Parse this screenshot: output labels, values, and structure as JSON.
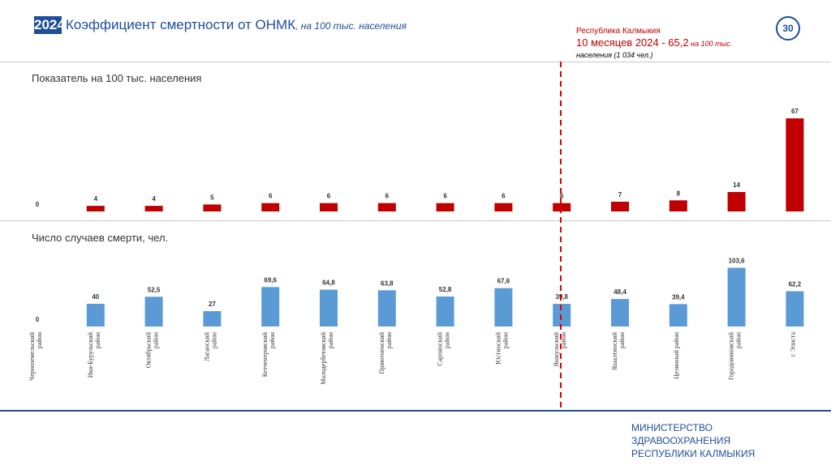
{
  "header": {
    "year": "2024",
    "title": "Коэффициент смертности от ОНМК",
    "subtitle": ", на 100 тыс. населения",
    "page_number": "30"
  },
  "region_info": {
    "region": "Республика Калмыкия",
    "period_value": "10 месяцев 2024 - 65,2",
    "per_unit": " на 100 тыс.",
    "population_note": "населения (1 034 чел.)"
  },
  "chart_data": [
    {
      "type": "bar",
      "title": "Показатель на 100 тыс. населения",
      "color": "#c00000",
      "categories": [
        "Черноземельский район",
        "Ики-Бурульский район",
        "Октябрьский район",
        "Лаганский район",
        "Кетченеровский район",
        "Малодербетовский район",
        "Приютненский район",
        "Сарпинский район",
        "Юстинский район",
        "Яшкульский район",
        "Яшалтинский район",
        "Целинный район",
        "Городовиковский район",
        "г. Элиста"
      ],
      "values": [
        0,
        4,
        4,
        5,
        6,
        6,
        6,
        6,
        6,
        6,
        7,
        8,
        14,
        67
      ],
      "value_labels": [
        "0",
        "4",
        "4",
        "5",
        "6",
        "6",
        "6",
        "6",
        "6",
        "6",
        "7",
        "8",
        "14",
        "67"
      ],
      "ylim": [
        0,
        70
      ]
    },
    {
      "type": "bar",
      "title": "Число случаев смерти, чел.",
      "color": "#5b9bd5",
      "categories": [
        "Черноземельский район",
        "Ики-Бурульский район",
        "Октябрьский район",
        "Лаганский район",
        "Кетченеровский район",
        "Малодербетовский район",
        "Приютненский район",
        "Сарпинский район",
        "Юстинский район",
        "Яшкульский район",
        "Яшалтинский район",
        "Целинный район",
        "Городовиковский район",
        "г. Элиста"
      ],
      "values": [
        0,
        40,
        52.5,
        27,
        69.6,
        64.8,
        63.8,
        52.8,
        67.6,
        39.8,
        48.4,
        39.4,
        103.6,
        62.2
      ],
      "value_labels": [
        "0",
        "40",
        "52,5",
        "27",
        "69,6",
        "64,8",
        "63,8",
        "52,8",
        "67,6",
        "39,8",
        "48,4",
        "39,4",
        "103,6",
        "62,2"
      ],
      "ylim": [
        0,
        110
      ]
    }
  ],
  "reference_line_color": "#e00000",
  "ministry": {
    "line1": "МИНИСТЕРСТВО",
    "line2": "ЗДРАВООХРАНЕНИЯ",
    "line3": "РЕСПУБЛИКИ КАЛМЫКИЯ"
  }
}
